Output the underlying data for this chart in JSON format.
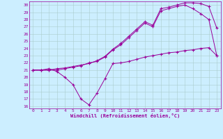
{
  "xlabel": "Windchill (Refroidissement éolien,°C)",
  "bg_color": "#cceeff",
  "line_color": "#990099",
  "grid_color": "#aacccc",
  "xlim": [
    -0.5,
    23.5
  ],
  "ylim": [
    15.7,
    30.5
  ],
  "xticks": [
    0,
    1,
    2,
    3,
    4,
    5,
    6,
    7,
    8,
    9,
    10,
    11,
    12,
    13,
    14,
    15,
    16,
    17,
    18,
    19,
    20,
    21,
    22,
    23
  ],
  "yticks": [
    16,
    17,
    18,
    19,
    20,
    21,
    22,
    23,
    24,
    25,
    26,
    27,
    28,
    29,
    30
  ],
  "curve1_x": [
    0,
    1,
    2,
    3,
    4,
    5,
    6,
    7,
    8,
    9,
    10,
    11,
    12,
    13,
    14,
    15,
    16,
    17,
    18,
    19,
    20,
    21,
    22,
    23
  ],
  "curve1_y": [
    21.0,
    21.0,
    21.2,
    20.8,
    20.0,
    19.0,
    17.0,
    16.2,
    17.8,
    19.8,
    21.9,
    22.0,
    22.2,
    22.5,
    22.8,
    23.0,
    23.2,
    23.4,
    23.5,
    23.7,
    23.8,
    24.0,
    24.1,
    23.0
  ],
  "curve2_x": [
    0,
    1,
    2,
    3,
    4,
    5,
    6,
    7,
    8,
    9,
    10,
    11,
    12,
    13,
    14,
    15,
    16,
    17,
    18,
    19,
    20,
    21,
    22,
    23
  ],
  "curve2_y": [
    21.0,
    21.0,
    21.0,
    21.0,
    21.2,
    21.4,
    21.6,
    22.0,
    22.2,
    22.8,
    23.8,
    24.5,
    25.5,
    26.5,
    27.5,
    27.0,
    29.2,
    29.5,
    29.8,
    30.0,
    29.5,
    28.8,
    28.0,
    23.0
  ],
  "curve3_x": [
    0,
    1,
    2,
    3,
    4,
    5,
    6,
    7,
    8,
    9,
    10,
    11,
    12,
    13,
    14,
    15,
    16,
    17,
    18,
    19,
    20,
    21,
    22,
    23
  ],
  "curve3_y": [
    21.0,
    21.0,
    21.0,
    21.2,
    21.3,
    21.5,
    21.7,
    21.9,
    22.3,
    22.9,
    23.9,
    24.7,
    25.7,
    26.7,
    27.7,
    27.2,
    29.5,
    29.7,
    30.0,
    30.3,
    30.3,
    30.2,
    29.8,
    26.8
  ]
}
